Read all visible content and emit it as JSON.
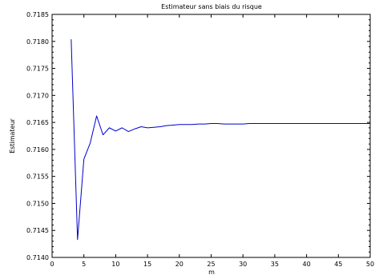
{
  "chart_data": {
    "type": "line",
    "title": "Estimateur sans biais du risque",
    "xlabel": "m",
    "ylabel": "Estimateur",
    "xlim": [
      0,
      50
    ],
    "ylim": [
      0.714,
      0.7185
    ],
    "xticks": [
      0,
      5,
      10,
      15,
      20,
      25,
      30,
      35,
      40,
      45,
      50
    ],
    "xtick_labels": [
      "0",
      "5",
      "10",
      "15",
      "20",
      "25",
      "30",
      "35",
      "40",
      "45",
      "50"
    ],
    "yticks": [
      0.714,
      0.7145,
      0.715,
      0.7155,
      0.716,
      0.7165,
      0.717,
      0.7175,
      0.718,
      0.7185
    ],
    "ytick_labels": [
      "0.7140",
      "0.7145",
      "0.7150",
      "0.7155",
      "0.7160",
      "0.7165",
      "0.7170",
      "0.7175",
      "0.7180",
      "0.7185"
    ],
    "grid": false,
    "legend": "none",
    "series": [
      {
        "color": "#0000cc",
        "x": [
          3,
          4,
          5,
          6,
          7,
          8,
          9,
          10,
          11,
          12,
          13,
          14,
          15,
          16,
          17,
          18,
          19,
          20,
          21,
          22,
          23,
          24,
          25,
          26,
          27,
          28,
          29,
          30,
          31,
          32,
          33,
          34,
          35,
          36,
          37,
          38,
          39,
          40,
          41,
          42,
          43,
          44,
          45,
          46,
          47,
          48,
          49,
          50
        ],
        "y": [
          0.71804,
          0.71433,
          0.71582,
          0.71612,
          0.71662,
          0.71627,
          0.7164,
          0.71634,
          0.7164,
          0.71633,
          0.71638,
          0.71642,
          0.7164,
          0.71641,
          0.71642,
          0.71644,
          0.71645,
          0.71646,
          0.71646,
          0.71646,
          0.71647,
          0.71647,
          0.71648,
          0.71648,
          0.71647,
          0.71647,
          0.71647,
          0.71647,
          0.71648,
          0.71648,
          0.71648,
          0.71648,
          0.71648,
          0.71648,
          0.71648,
          0.71648,
          0.71648,
          0.71648,
          0.71648,
          0.71648,
          0.71648,
          0.71648,
          0.71648,
          0.71648,
          0.71648,
          0.71648,
          0.71648,
          0.71648
        ]
      }
    ]
  }
}
